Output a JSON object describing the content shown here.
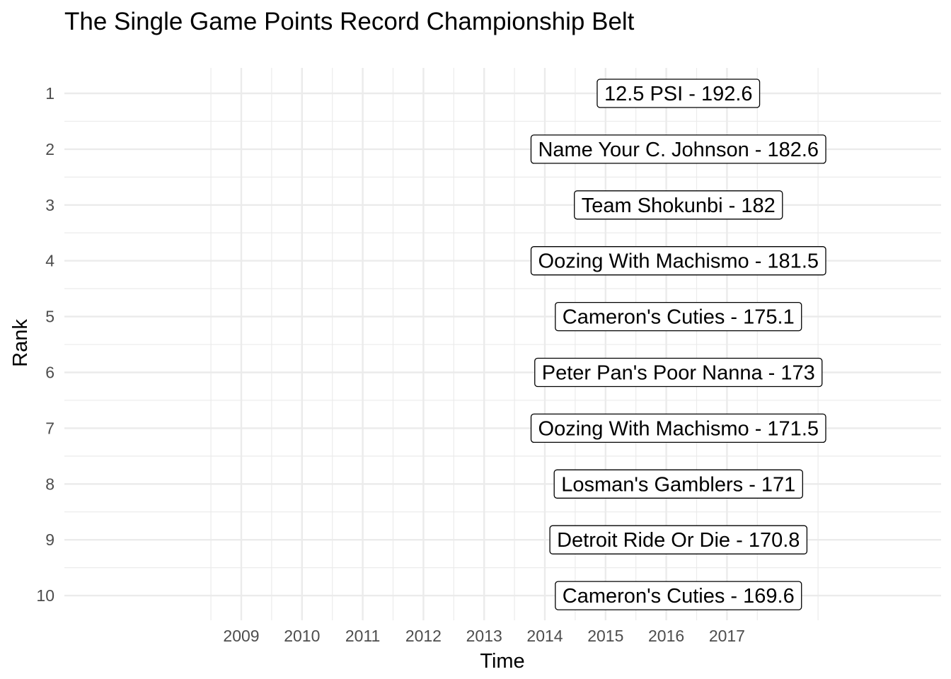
{
  "chart_data": {
    "type": "table",
    "title": "The Single Game Points Record Championship Belt",
    "xlabel": "Time",
    "ylabel": "Rank",
    "x_ticks": [
      "2009",
      "2010",
      "2011",
      "2012",
      "2013",
      "2014",
      "2015",
      "2016",
      "2017"
    ],
    "y_ticks": [
      "1",
      "2",
      "3",
      "4",
      "5",
      "6",
      "7",
      "8",
      "9",
      "10"
    ],
    "xlim": [
      2007.1,
      2020.7
    ],
    "ylim": [
      1,
      10
    ],
    "y_reversed": true,
    "grid": true,
    "labels": [
      {
        "rank": 1,
        "x": 2016.2,
        "text": "12.5 PSI - 192.6"
      },
      {
        "rank": 2,
        "x": 2016.2,
        "text": "Name Your C. Johnson - 182.6"
      },
      {
        "rank": 3,
        "x": 2016.2,
        "text": "Team Shokunbi - 182"
      },
      {
        "rank": 4,
        "x": 2016.2,
        "text": "Oozing With Machismo - 181.5"
      },
      {
        "rank": 5,
        "x": 2016.2,
        "text": "Cameron's Cuties - 175.1"
      },
      {
        "rank": 6,
        "x": 2016.2,
        "text": "Peter Pan's Poor Nanna - 173"
      },
      {
        "rank": 7,
        "x": 2016.2,
        "text": "Oozing With Machismo - 171.5"
      },
      {
        "rank": 8,
        "x": 2016.2,
        "text": "Losman's Gamblers - 171"
      },
      {
        "rank": 9,
        "x": 2016.2,
        "text": "Detroit Ride Or Die - 170.8"
      },
      {
        "rank": 10,
        "x": 2016.2,
        "text": "Cameron's Cuties - 169.6"
      }
    ]
  }
}
